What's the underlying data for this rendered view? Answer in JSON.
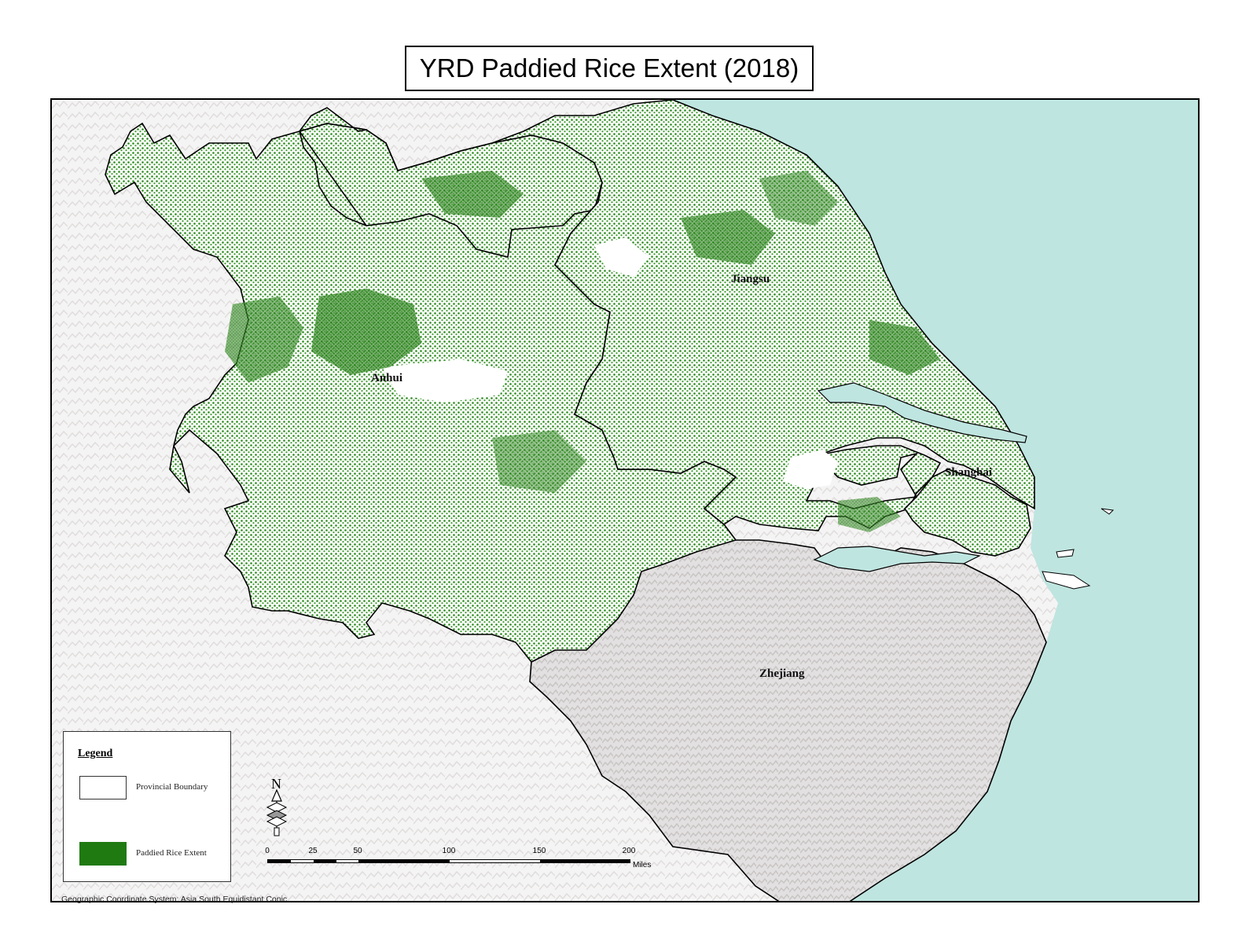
{
  "title": "YRD Paddied Rice Extent (2018)",
  "provinces": [
    {
      "name": "Anhui"
    },
    {
      "name": "Jiangsu"
    },
    {
      "name": "Shanghai"
    },
    {
      "name": "Zhejiang"
    }
  ],
  "legend": {
    "title": "Legend",
    "items": [
      {
        "label": "Provincial Boundary",
        "symbol": "outline"
      },
      {
        "label": "Paddied Rice Extent",
        "symbol": "fill",
        "color": "#1f7a12"
      }
    ]
  },
  "scale_bar": {
    "ticks": [
      "0",
      "25",
      "50",
      "100",
      "150",
      "200"
    ],
    "unit": "Miles"
  },
  "north_arrow": {
    "label": "N"
  },
  "coordinate_system": "Geographic Coordinate System: Asia South Equidistant Conic",
  "colors": {
    "sea": "#bfe5e0",
    "rice": "#1f7a12",
    "terrain": "#d6d3d3",
    "boundary": "#000000"
  }
}
